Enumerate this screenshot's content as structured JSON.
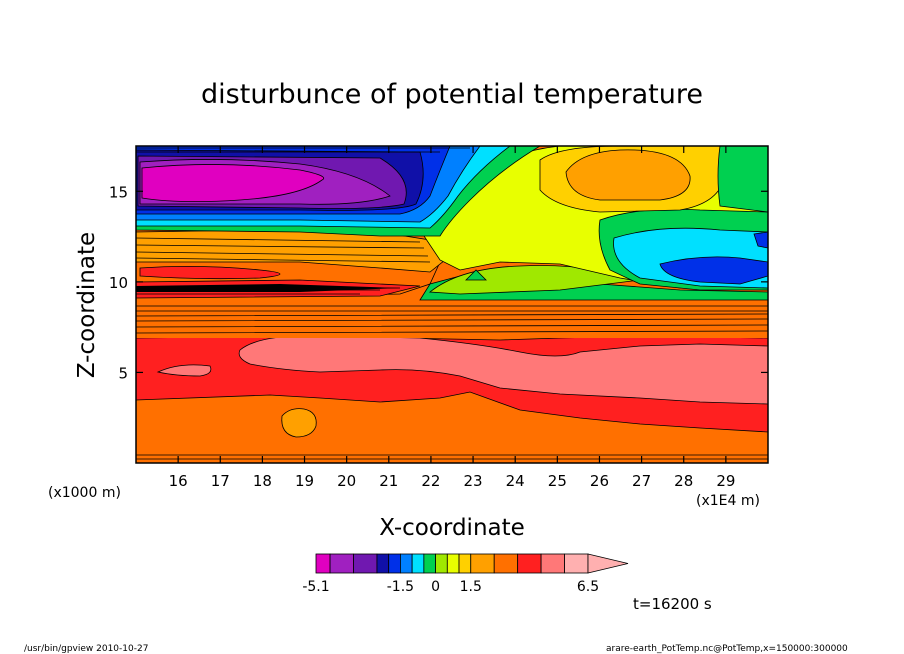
{
  "chart_data": {
    "type": "heatmap",
    "title": "disturbunce of potential temperature",
    "xlabel": "X-coordinate",
    "ylabel": "Z-coordinate",
    "x_unit": "(x1E4 m)",
    "y_unit": "(x1000 m)",
    "xlim": [
      15,
      30
    ],
    "ylim": [
      0,
      17.5
    ],
    "x_ticks": [
      16,
      17,
      18,
      19,
      20,
      21,
      22,
      23,
      24,
      25,
      26,
      27,
      28,
      29
    ],
    "y_ticks": [
      5,
      10,
      15
    ],
    "colorbar": {
      "levels": [
        -5.1,
        -4.5,
        -3.5,
        -2.5,
        -2.0,
        -1.5,
        -1.0,
        -0.5,
        0,
        0.5,
        1.0,
        1.5,
        2.5,
        3.5,
        4.5,
        5.5,
        6.5
      ],
      "tick_labels": [
        "-5.1",
        "-1.5",
        "0",
        "1.5",
        "6.5"
      ],
      "tick_values": [
        -5.1,
        -1.5,
        0,
        1.5,
        6.5
      ],
      "colors": [
        "#e000c0",
        "#a020c0",
        "#7018b0",
        "#1010a8",
        "#0030e8",
        "#0080ff",
        "#00e0ff",
        "#00d050",
        "#a0e800",
        "#e8ff00",
        "#ffd000",
        "#ffa000",
        "#ff7000",
        "#ff2020",
        "#ff7878",
        "#ffb0b0"
      ]
    },
    "field_bands": [
      {
        "z_range": [
          15.2,
          17.5
        ],
        "x_range": [
          15,
          21.5
        ],
        "value": -4.8
      },
      {
        "z_range": [
          14.0,
          17.5
        ],
        "x_range": [
          22.5,
          26.5
        ],
        "value": 0.5
      },
      {
        "z_range": [
          15.0,
          17.3
        ],
        "x_range": [
          25.5,
          28.5
        ],
        "value": 1.5
      },
      {
        "z_range": [
          10.5,
          13.3
        ],
        "x_range": [
          26.5,
          30
        ],
        "value": -0.5
      },
      {
        "z_range": [
          10.7,
          11.8
        ],
        "x_range": [
          27.0,
          29.8
        ],
        "value": -1.5
      },
      {
        "z_range": [
          10.2,
          12.0
        ],
        "x_range": [
          15,
          22
        ],
        "value": 2.5
      },
      {
        "z_range": [
          9.7,
          10.3
        ],
        "x_range": [
          15,
          21.5
        ],
        "value": -5.1
      },
      {
        "z_range": [
          7.0,
          9.5
        ],
        "x_range": [
          15,
          30
        ],
        "value": 2.5
      },
      {
        "z_range": [
          4.5,
          7.0
        ],
        "x_range": [
          15,
          30
        ],
        "value": 3.5
      },
      {
        "z_range": [
          5.0,
          6.6
        ],
        "x_range": [
          20.5,
          30
        ],
        "value": 4.5
      },
      {
        "z_range": [
          0,
          3.5
        ],
        "x_range": [
          15,
          30
        ],
        "value": 2.5
      },
      {
        "z_range": [
          1.3,
          2.8
        ],
        "x_range": [
          18.6,
          19.5
        ],
        "value": 1.5
      }
    ],
    "annotation_time": "t=16200 s",
    "footer_left": "/usr/bin/gpview   2010-10-27",
    "footer_right": "arare-earth_PotTemp.nc@PotTemp,x=150000:300000"
  }
}
